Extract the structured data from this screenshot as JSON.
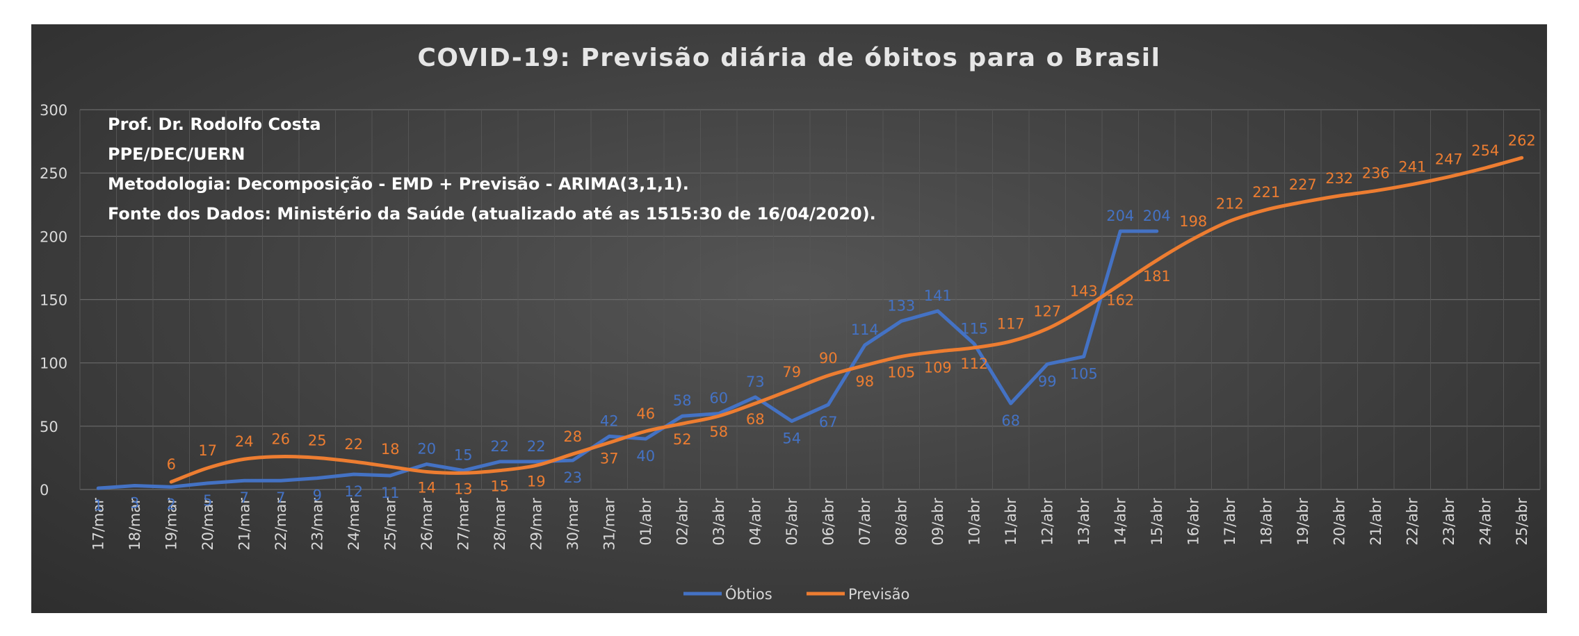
{
  "chart_data": {
    "type": "line",
    "title": "COVID-19: Previsão diária de óbitos para o Brasil",
    "annotations": [
      "Prof. Dr. Rodolfo Costa",
      "PPE/DEC/UERN",
      "Metodologia: Decomposição - EMD + Previsão - ARIMA(3,1,1).",
      "Fonte dos Dados: Ministério da Saúde (atualizado até as 1515:30 de 16/04/2020)."
    ],
    "categories": [
      "17/mar",
      "18/mar",
      "19/mar",
      "20/mar",
      "21/mar",
      "22/mar",
      "23/mar",
      "24/mar",
      "25/mar",
      "26/mar",
      "27/mar",
      "28/mar",
      "29/mar",
      "30/mar",
      "31/mar",
      "01/abr",
      "02/abr",
      "03/abr",
      "04/abr",
      "05/abr",
      "06/abr",
      "07/abr",
      "08/abr",
      "09/abr",
      "10/abr",
      "11/abr",
      "12/abr",
      "13/abr",
      "14/abr",
      "15/abr",
      "16/abr",
      "17/abr",
      "18/abr",
      "19/abr",
      "20/abr",
      "21/abr",
      "22/abr",
      "23/abr",
      "24/abr",
      "25/abr"
    ],
    "ylim": [
      0,
      300
    ],
    "yticks": [
      0,
      50,
      100,
      150,
      200,
      250,
      300
    ],
    "grid": true,
    "legend_position": "bottom-center",
    "series": [
      {
        "name": "Óbtios",
        "color": "#4472C4",
        "values": [
          1,
          3,
          2,
          5,
          7,
          7,
          9,
          12,
          11,
          20,
          15,
          22,
          22,
          23,
          42,
          40,
          58,
          60,
          73,
          54,
          67,
          114,
          133,
          141,
          115,
          68,
          99,
          105,
          204,
          204,
          null,
          null,
          null,
          null,
          null,
          null,
          null,
          null,
          null,
          null
        ]
      },
      {
        "name": "Previsão",
        "color": "#ED7D31",
        "values": [
          null,
          null,
          6,
          17,
          24,
          26,
          25,
          22,
          18,
          14,
          13,
          15,
          19,
          28,
          37,
          46,
          52,
          58,
          68,
          79,
          90,
          98,
          105,
          109,
          112,
          117,
          127,
          143,
          162,
          181,
          198,
          212,
          221,
          227,
          232,
          236,
          241,
          247,
          254,
          262
        ]
      }
    ]
  }
}
